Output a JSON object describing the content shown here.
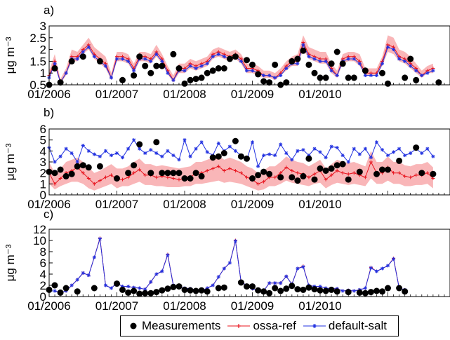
{
  "chart_data": [
    {
      "type": "line",
      "panel_label": "a)",
      "ylabel": "μg m⁻³",
      "ylim": [
        0.5,
        3
      ],
      "yticks": [
        0.5,
        1,
        1.5,
        2,
        2.5,
        3
      ],
      "ytick_labels": [
        "0.5",
        "1",
        "1.5",
        "2",
        "2.5",
        "3"
      ],
      "xlim": [
        0,
        71
      ],
      "xtick_positions": [
        0,
        12,
        24,
        36,
        48
      ],
      "xtick_labels": [
        "01/2006",
        "01/2007",
        "01/2008",
        "01/2009",
        "01/2010"
      ],
      "series": [
        {
          "name": "ossa-ref",
          "values": [
            0.9,
            1.5,
            0.6,
            1.0,
            1.7,
            1.7,
            2.0,
            2.2,
            1.8,
            1.6,
            1.4,
            0.8,
            1.7,
            1.7,
            1.6,
            1.2,
            1.7,
            1.7,
            1.6,
            1.9,
            1.6,
            1.1,
            0.7,
            1.2,
            1.2,
            1.4,
            1.3,
            1.4,
            1.5,
            1.8,
            1.9,
            1.8,
            1.7,
            1.8,
            1.6,
            1.2,
            1.2,
            1.1,
            0.9,
            0.9,
            0.8,
            1.0,
            1.3,
            1.5,
            1.5,
            2.3,
            1.8,
            1.7,
            1.6,
            1.6,
            1.2,
            0.9,
            1.6,
            1.7,
            1.7,
            1.5,
            1.0,
            1.0,
            1.0,
            1.5,
            2.2,
            2.1,
            1.7,
            1.6,
            1.4,
            1.2,
            0.9,
            1.1,
            1.2
          ]
        },
        {
          "name": "default-salt",
          "values": [
            0.8,
            1.4,
            0.6,
            1.0,
            1.6,
            1.6,
            1.9,
            2.1,
            1.7,
            1.5,
            1.3,
            0.8,
            1.6,
            1.6,
            1.5,
            1.1,
            1.6,
            1.6,
            1.5,
            1.8,
            1.5,
            1.0,
            0.7,
            1.1,
            1.1,
            1.3,
            1.2,
            1.3,
            1.4,
            1.7,
            1.8,
            1.7,
            1.6,
            1.7,
            1.5,
            1.1,
            1.1,
            1.0,
            0.9,
            0.9,
            0.8,
            0.9,
            1.2,
            1.4,
            1.4,
            2.2,
            1.7,
            1.6,
            1.5,
            1.5,
            1.1,
            0.9,
            1.5,
            1.6,
            1.6,
            1.4,
            0.9,
            0.9,
            0.9,
            1.4,
            2.1,
            2.0,
            1.6,
            1.5,
            1.3,
            1.1,
            0.9,
            1.0,
            1.1
          ]
        },
        {
          "name": "Measurements",
          "x": [
            0,
            1,
            2,
            4,
            6,
            9,
            13,
            15,
            16,
            17,
            18,
            19,
            20,
            22,
            23,
            24,
            25,
            26,
            27,
            28,
            29,
            30,
            31,
            32,
            33,
            35,
            36,
            37,
            38,
            39,
            40,
            41,
            42,
            43,
            44,
            45,
            46,
            47,
            48,
            49,
            50,
            51,
            52,
            53,
            54,
            56,
            59,
            60,
            63,
            64,
            65,
            69
          ],
          "values": [
            0.5,
            1.2,
            0.6,
            1.5,
            1.7,
            1.5,
            0.7,
            0.9,
            1.7,
            1.3,
            1.0,
            1.3,
            1.3,
            1.8,
            1.2,
            0.55,
            0.7,
            0.75,
            0.8,
            1.0,
            1.1,
            1.2,
            1.2,
            1.6,
            1.7,
            1.55,
            1.35,
            0.95,
            0.65,
            0.6,
            1.35,
            0.5,
            0.6,
            1.5,
            1.6,
            1.95,
            1.35,
            1.0,
            0.8,
            0.8,
            1.4,
            1.9,
            1.4,
            0.8,
            0.8,
            1.1,
            1.0,
            0.55,
            0.8,
            1.6,
            0.7,
            0.6
          ]
        }
      ],
      "band": {
        "lower": [
          0.8,
          1.3,
          0.55,
          0.9,
          1.5,
          1.5,
          1.8,
          2.0,
          1.6,
          1.4,
          1.2,
          0.7,
          1.5,
          1.5,
          1.4,
          1.0,
          1.5,
          1.5,
          1.4,
          1.7,
          1.4,
          0.95,
          0.6,
          1.0,
          1.0,
          1.2,
          1.1,
          1.2,
          1.3,
          1.6,
          1.7,
          1.6,
          1.5,
          1.6,
          1.4,
          1.0,
          1.0,
          0.9,
          0.8,
          0.8,
          0.7,
          0.9,
          1.1,
          1.3,
          1.3,
          2.0,
          1.6,
          1.5,
          1.4,
          1.4,
          1.0,
          0.8,
          1.4,
          1.5,
          1.5,
          1.3,
          0.9,
          0.9,
          0.9,
          1.3,
          1.9,
          1.8,
          1.5,
          1.4,
          1.2,
          1.0,
          0.8,
          1.0,
          1.0
        ],
        "upper": [
          1.1,
          1.8,
          0.75,
          1.2,
          2.0,
          1.9,
          2.2,
          2.5,
          2.1,
          1.9,
          1.7,
          1.0,
          1.9,
          1.9,
          1.8,
          1.4,
          1.9,
          1.9,
          1.8,
          2.2,
          1.8,
          1.3,
          0.9,
          1.4,
          1.4,
          1.6,
          1.5,
          1.6,
          1.7,
          2.0,
          2.1,
          2.0,
          1.9,
          2.0,
          1.8,
          1.4,
          1.4,
          1.3,
          1.1,
          1.1,
          1.0,
          1.2,
          1.5,
          1.7,
          1.8,
          2.6,
          2.1,
          2.0,
          1.9,
          1.9,
          1.4,
          1.1,
          1.8,
          1.9,
          1.9,
          1.8,
          1.2,
          1.2,
          1.2,
          1.7,
          2.6,
          2.5,
          2.0,
          1.9,
          1.7,
          1.4,
          1.1,
          1.3,
          1.4
        ]
      }
    },
    {
      "type": "line",
      "panel_label": "b)",
      "ylabel": "μg m⁻³",
      "ylim": [
        0,
        6
      ],
      "yticks": [
        0,
        1,
        2,
        3,
        4,
        5,
        6
      ],
      "ytick_labels": [
        "0",
        "1",
        "2",
        "3",
        "4",
        "5",
        "6"
      ],
      "xlim": [
        0,
        71
      ],
      "xtick_positions": [
        0,
        12,
        24,
        36,
        48
      ],
      "xtick_labels": [
        "01/2006",
        "01/2007",
        "01/2008",
        "01/2009",
        "01/2010"
      ],
      "series": [
        {
          "name": "ossa-ref",
          "values": [
            2.0,
            1.0,
            1.5,
            2.0,
            2.2,
            2.5,
            2.0,
            1.5,
            1.0,
            1.3,
            1.6,
            1.8,
            1.4,
            1.4,
            1.6,
            2.0,
            2.3,
            1.8,
            1.8,
            1.6,
            1.7,
            1.6,
            1.5,
            1.4,
            1.5,
            1.6,
            2.0,
            2.0,
            2.2,
            2.4,
            2.6,
            2.2,
            2.4,
            2.2,
            2.0,
            1.6,
            1.4,
            1.0,
            1.2,
            1.6,
            1.6,
            2.0,
            2.5,
            2.2,
            2.0,
            1.9,
            1.6,
            1.9,
            2.2,
            1.4,
            1.8,
            2.2,
            2.0,
            1.9,
            2.0,
            1.8,
            1.6,
            3.0,
            2.0,
            2.0,
            2.5,
            2.0,
            2.0,
            1.7,
            1.6,
            1.8,
            1.8,
            2.0,
            1.5
          ]
        },
        {
          "name": "default-salt",
          "values": [
            4.3,
            3.0,
            3.5,
            4.2,
            3.8,
            3.0,
            4.5,
            4.0,
            3.7,
            3.5,
            4.0,
            3.6,
            3.8,
            3.4,
            4.2,
            5.0,
            4.2,
            3.8,
            4.1,
            3.8,
            3.5,
            4.0,
            3.6,
            3.2,
            5.0,
            3.5,
            4.2,
            4.8,
            3.9,
            3.6,
            4.7,
            4.0,
            4.4,
            4.0,
            3.6,
            3.2,
            4.8,
            2.6,
            3.6,
            3.7,
            3.6,
            4.6,
            3.8,
            3.2,
            4.0,
            4.1,
            3.6,
            4.2,
            3.9,
            3.4,
            4.4,
            4.3,
            3.6,
            3.0,
            4.2,
            3.7,
            4.2,
            3.4,
            4.8,
            4.1,
            3.6,
            3.9,
            4.2,
            3.6,
            3.8,
            4.2,
            3.8,
            4.2,
            3.5
          ]
        },
        {
          "name": "Measurements",
          "x": [
            0,
            1,
            2,
            3,
            4,
            5,
            6,
            7,
            9,
            12,
            14,
            15,
            16,
            18,
            19,
            20,
            21,
            22,
            23,
            24,
            25,
            26,
            27,
            29,
            30,
            31,
            33,
            34,
            35,
            36,
            37,
            38,
            39,
            41,
            43,
            44,
            45,
            46,
            47,
            48,
            49,
            50,
            51,
            52,
            53,
            55,
            58,
            59,
            60,
            62,
            65,
            66,
            68
          ],
          "values": [
            2.1,
            2.0,
            2.3,
            1.7,
            1.9,
            2.6,
            2.7,
            2.5,
            2.6,
            1.5,
            2.0,
            2.7,
            4.6,
            2.0,
            4.8,
            2.0,
            2.0,
            2.0,
            2.0,
            1.5,
            1.5,
            2.0,
            1.7,
            3.4,
            3.5,
            3.8,
            4.9,
            3.5,
            3.3,
            1.5,
            1.8,
            2.1,
            1.9,
            1.6,
            1.6,
            1.3,
            1.7,
            3.3,
            1.4,
            2.4,
            2.2,
            2.4,
            2.7,
            2.8,
            1.4,
            2.1,
            1.9,
            2.3,
            2.3,
            3.1,
            4.3,
            2.0,
            1.9
          ]
        }
      ],
      "band": {
        "lower": [
          1.0,
          0.5,
          0.8,
          1.0,
          1.2,
          1.2,
          1.0,
          0.6,
          0.4,
          0.6,
          0.8,
          1.0,
          0.6,
          0.8,
          0.8,
          1.0,
          1.2,
          0.9,
          0.9,
          0.8,
          0.8,
          0.7,
          0.7,
          0.7,
          0.8,
          0.8,
          1.0,
          1.0,
          1.1,
          1.2,
          1.3,
          1.1,
          1.2,
          1.1,
          1.0,
          0.8,
          0.6,
          0.4,
          0.5,
          0.8,
          0.8,
          1.0,
          1.3,
          1.1,
          1.0,
          0.9,
          0.8,
          1.0,
          1.1,
          0.6,
          0.9,
          1.1,
          1.0,
          0.9,
          1.0,
          0.9,
          0.8,
          1.5,
          1.0,
          1.0,
          1.3,
          1.0,
          1.0,
          0.8,
          0.8,
          0.9,
          0.9,
          1.0,
          0.6
        ],
        "upper": [
          3.0,
          2.0,
          2.4,
          3.0,
          3.2,
          3.4,
          3.0,
          2.5,
          2.0,
          2.2,
          2.5,
          2.8,
          2.4,
          2.4,
          2.6,
          3.0,
          3.3,
          2.8,
          2.8,
          2.6,
          2.7,
          2.6,
          2.5,
          2.4,
          2.5,
          2.6,
          3.0,
          3.0,
          3.2,
          3.4,
          3.6,
          3.2,
          3.4,
          3.2,
          3.0,
          2.6,
          2.4,
          2.0,
          2.2,
          2.6,
          2.6,
          3.0,
          3.5,
          3.2,
          3.0,
          2.9,
          2.6,
          2.9,
          3.2,
          2.4,
          2.8,
          3.2,
          3.0,
          2.9,
          3.0,
          2.8,
          2.6,
          4.0,
          3.0,
          3.0,
          3.5,
          3.0,
          3.0,
          2.7,
          2.6,
          2.8,
          2.8,
          3.0,
          2.5
        ]
      }
    },
    {
      "type": "line",
      "panel_label": "c)",
      "ylabel": "μg m⁻³",
      "ylim": [
        0,
        12
      ],
      "yticks": [
        0,
        2,
        4,
        6,
        8,
        10,
        12
      ],
      "ytick_labels": [
        "0",
        "2",
        "4",
        "6",
        "8",
        "10",
        "12"
      ],
      "xlim": [
        0,
        71
      ],
      "xtick_positions": [
        0,
        12,
        24,
        36,
        48
      ],
      "xtick_labels": [
        "01/2006",
        "01/2007",
        "01/2008",
        "01/2009",
        "01/2010"
      ],
      "series": [
        {
          "name": "ossa-ref",
          "values": [
            1.0,
            1.0,
            0.7,
            1.0,
            2.0,
            3.0,
            4.2,
            3.8,
            7.0,
            10.4,
            2.0,
            1.5,
            2.4,
            1.8,
            1.8,
            1.6,
            1.5,
            1.3,
            2.6,
            4.0,
            4.5,
            7.5,
            2.0,
            1.6,
            1.5,
            1.4,
            1.2,
            1.0,
            1.5,
            2.0,
            3.5,
            5.0,
            6.0,
            10.0,
            2.6,
            2.0,
            1.4,
            1.0,
            1.0,
            2.4,
            2.4,
            2.4,
            3.6,
            2.2,
            5.0,
            5.4,
            2.0,
            1.8,
            1.8,
            1.5,
            1.4,
            1.4,
            1.0,
            1.1,
            1.0,
            1.2,
            1.5,
            5.2,
            4.5,
            5.0,
            5.5,
            6.8,
            1.5,
            1.2
          ]
        },
        {
          "name": "default-salt",
          "values": [
            1.0,
            1.0,
            0.7,
            1.0,
            2.0,
            3.0,
            4.2,
            3.8,
            7.0,
            10.3,
            2.0,
            1.5,
            2.4,
            1.8,
            1.8,
            1.6,
            1.5,
            1.3,
            2.6,
            4.0,
            4.5,
            7.4,
            2.0,
            1.6,
            1.5,
            1.4,
            1.2,
            1.0,
            1.5,
            2.0,
            3.5,
            5.0,
            6.0,
            9.9,
            2.6,
            2.0,
            1.4,
            1.0,
            1.0,
            2.4,
            2.4,
            2.4,
            3.6,
            2.2,
            5.0,
            5.3,
            2.0,
            1.8,
            1.8,
            1.5,
            1.4,
            1.4,
            1.0,
            1.1,
            1.0,
            1.2,
            1.5,
            5.1,
            4.5,
            5.0,
            5.5,
            6.7,
            1.5,
            1.2
          ]
        },
        {
          "name": "Measurements",
          "x": [
            0,
            1,
            2,
            3,
            5,
            8,
            12,
            13,
            14,
            15,
            16,
            17,
            18,
            19,
            20,
            21,
            22,
            23,
            24,
            25,
            26,
            27,
            28,
            30,
            31,
            34,
            35,
            36,
            37,
            38,
            39,
            40,
            41,
            42,
            43,
            44,
            45,
            46,
            47,
            48,
            49,
            50,
            51,
            53,
            55,
            56,
            57,
            58,
            59,
            60,
            62,
            63
          ],
          "values": [
            1.2,
            2.0,
            0.7,
            1.5,
            0.9,
            1.5,
            2.3,
            1.2,
            0.7,
            1.0,
            0.5,
            0.6,
            0.6,
            0.8,
            1.1,
            1.4,
            1.7,
            1.8,
            1.2,
            1.1,
            1.0,
            1.1,
            0.9,
            1.5,
            1.6,
            2.5,
            1.8,
            1.8,
            1.1,
            0.9,
            0.6,
            1.5,
            1.0,
            1.4,
            1.9,
            1.3,
            1.2,
            1.6,
            1.3,
            1.1,
            1.0,
            1.2,
            0.9,
            0.8,
            0.7,
            0.6,
            0.8,
            1.0,
            0.9,
            1.5,
            1.5,
            0.9
          ]
        }
      ]
    }
  ],
  "legend": {
    "items": [
      {
        "label": "Measurements",
        "color": "#000000",
        "marker": "dot"
      },
      {
        "label": "ossa-ref",
        "color": "#e8141e",
        "marker": "plus"
      },
      {
        "label": "default-salt",
        "color": "#2030e0",
        "marker": "star"
      }
    ]
  },
  "colors": {
    "ossa_ref": "#e8141e",
    "default_salt": "#2030e0",
    "band": "#f9b6b8",
    "measurement": "#000000"
  }
}
